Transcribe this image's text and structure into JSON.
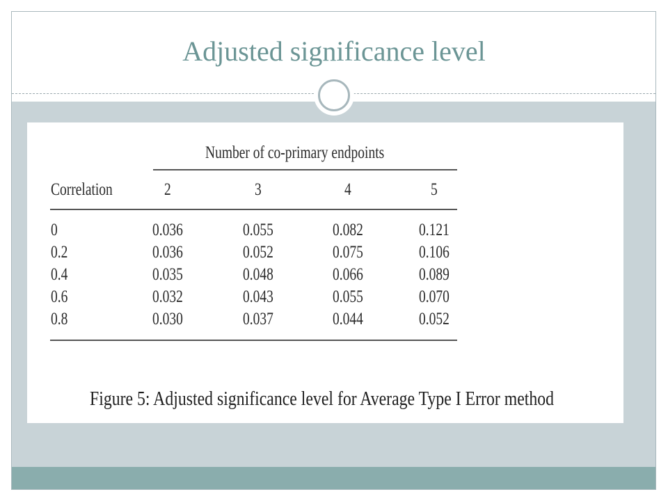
{
  "slide": {
    "title": "Adjusted significance level"
  },
  "table": {
    "spanner_header": "Number of co-primary endpoints",
    "row_header": "Correlation",
    "columns": [
      "2",
      "3",
      "4",
      "5"
    ],
    "rows": [
      {
        "label": "0",
        "values": [
          "0.036",
          "0.055",
          "0.082",
          "0.121"
        ]
      },
      {
        "label": "0.2",
        "values": [
          "0.036",
          "0.052",
          "0.075",
          "0.106"
        ]
      },
      {
        "label": "0.4",
        "values": [
          "0.035",
          "0.048",
          "0.066",
          "0.089"
        ]
      },
      {
        "label": "0.6",
        "values": [
          "0.032",
          "0.043",
          "0.055",
          "0.070"
        ]
      },
      {
        "label": "0.8",
        "values": [
          "0.030",
          "0.037",
          "0.044",
          "0.052"
        ]
      }
    ],
    "caption": "Figure 5:  Adjusted significance level for Average Type I Error method"
  },
  "colors": {
    "title": "#6b9595",
    "body_background": "#c8d3d7",
    "footer_band": "#8aadad"
  }
}
